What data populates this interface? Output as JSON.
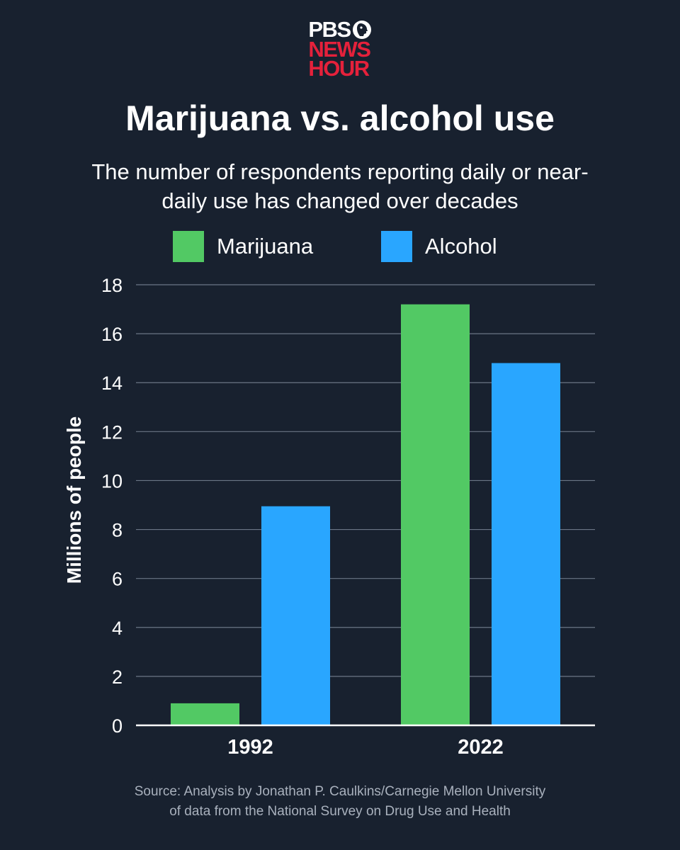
{
  "brand": {
    "line1": "PBS",
    "line2": "NEWS",
    "line3": "HOUR",
    "colors": {
      "pbs": "#ffffff",
      "newshour": "#e5213b"
    }
  },
  "chart_data": {
    "type": "bar",
    "title": "Marijuana vs. alcohol use",
    "subtitle": "The number of respondents reporting daily or near-daily use has changed over decades",
    "categories": [
      "1992",
      "2022"
    ],
    "series": [
      {
        "name": "Marijuana",
        "color": "#52c964",
        "values": [
          0.9,
          17.2
        ]
      },
      {
        "name": "Alcohol",
        "color": "#29a6ff",
        "values": [
          8.95,
          14.8
        ]
      }
    ],
    "ylabel": "Millions of people",
    "xlabel": "",
    "ylim": [
      0,
      18
    ],
    "yticks": [
      "0",
      "2",
      "4",
      "6",
      "8",
      "10",
      "12",
      "14",
      "16",
      "18"
    ],
    "grid": true,
    "legend_position": "top"
  },
  "source": {
    "line1": "Source: Analysis by Jonathan P. Caulkins/Carnegie Mellon University",
    "line2": "of data from the National Survey on Drug Use and Health"
  }
}
